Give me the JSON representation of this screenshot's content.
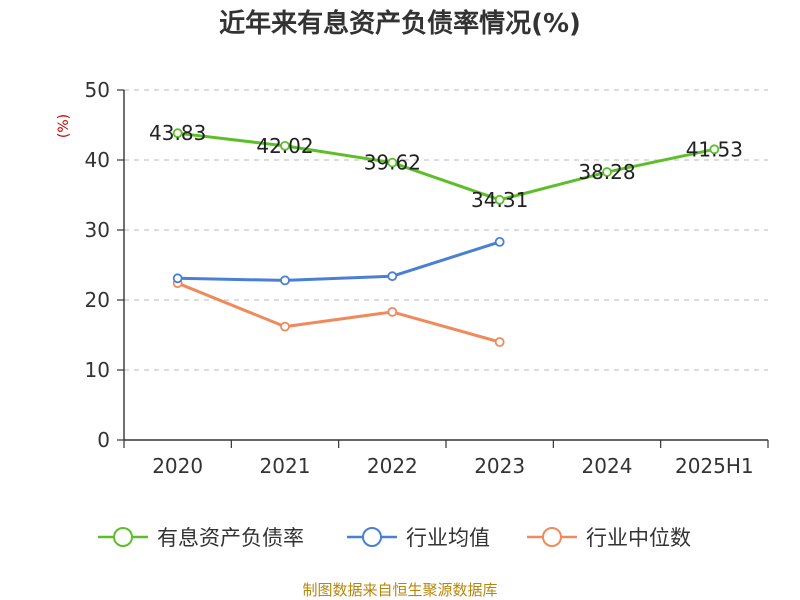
{
  "chart_data": {
    "type": "line",
    "title": "近年来有息资产负债率情况(%)",
    "ylabel": "(%)",
    "categories": [
      "2020",
      "2021",
      "2022",
      "2023",
      "2024",
      "2025H1"
    ],
    "ylim": [
      0,
      50
    ],
    "yticks": [
      0,
      10,
      20,
      30,
      40,
      50
    ],
    "grid": true,
    "legend_position": "bottom",
    "series": [
      {
        "name": "有息资产负债率",
        "color": "#5cbf2a",
        "values": [
          43.83,
          42.02,
          39.62,
          34.31,
          38.28,
          41.53
        ],
        "labels": [
          "43.83",
          "42.02",
          "39.62",
          "34.31",
          "38.28",
          "41.53"
        ],
        "show_labels": true
      },
      {
        "name": "行业均值",
        "color": "#4a7fd6",
        "values": [
          23.1,
          22.8,
          23.4,
          28.3,
          null,
          null
        ],
        "show_labels": false
      },
      {
        "name": "行业中位数",
        "color": "#f08a5d",
        "values": [
          22.4,
          16.2,
          18.3,
          14.0,
          null,
          null
        ],
        "show_labels": false
      }
    ]
  },
  "footer": {
    "source": "制图数据来自恒生聚源数据库"
  }
}
